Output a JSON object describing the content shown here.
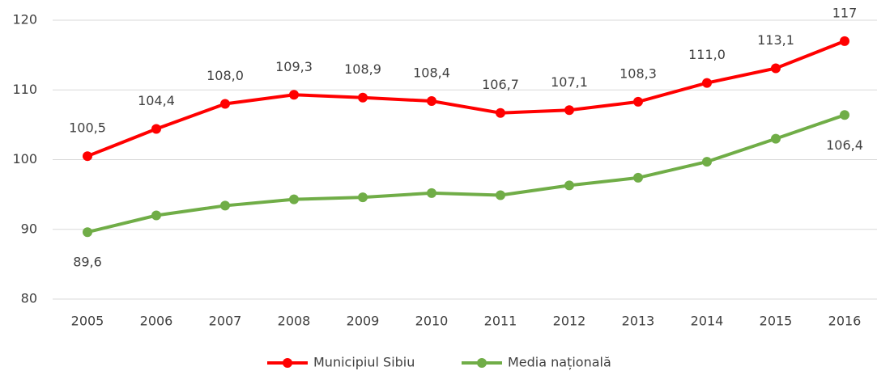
{
  "chart_data": {
    "type": "line",
    "categories": [
      "2005",
      "2006",
      "2007",
      "2008",
      "2009",
      "2010",
      "2011",
      "2012",
      "2013",
      "2014",
      "2015",
      "2016"
    ],
    "series": [
      {
        "name": "Municipiul Sibiu",
        "color": "#ff0000",
        "values": [
          100.5,
          104.4,
          108.0,
          109.3,
          108.9,
          108.4,
          106.7,
          107.1,
          108.3,
          111.0,
          113.1,
          117
        ],
        "value_labels": [
          "100,5",
          "104,4",
          "108,0",
          "109,3",
          "108,9",
          "108,4",
          "106,7",
          "107,1",
          "108,3",
          "111,0",
          "113,1",
          "117"
        ]
      },
      {
        "name": "Media națională",
        "color": "#70ad47",
        "values": [
          89.6,
          92.0,
          93.4,
          94.3,
          94.6,
          95.2,
          94.9,
          96.3,
          97.4,
          99.7,
          103.0,
          106.4
        ],
        "value_labels": [
          "89,6",
          null,
          null,
          null,
          null,
          null,
          null,
          null,
          null,
          null,
          null,
          "106,4"
        ]
      }
    ],
    "ylim": [
      80,
      120
    ],
    "yticks": [
      80,
      90,
      100,
      110,
      120
    ],
    "grid": true,
    "legend": "bottom"
  }
}
